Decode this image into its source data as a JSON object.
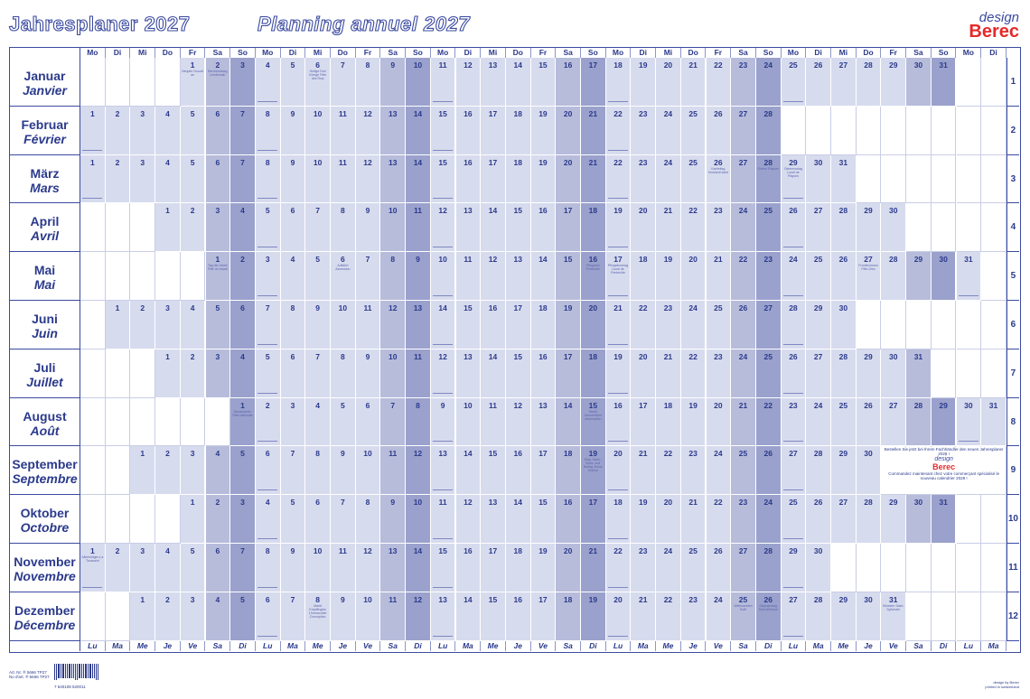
{
  "header": {
    "title_de": "Jahresplaner 2027",
    "title_fr": "Planning annuel 2027"
  },
  "brand": {
    "design": "design",
    "name": "Berec"
  },
  "year": 2027,
  "weekday_header": [
    "Mo",
    "Di",
    "Mi",
    "Do",
    "Fr",
    "Sa",
    "So",
    "Mo",
    "Di",
    "Mi",
    "Do",
    "Fr",
    "Sa",
    "So",
    "Mo",
    "Di",
    "Mi",
    "Do",
    "Fr",
    "Sa",
    "So",
    "Mo",
    "Di",
    "Mi",
    "Do",
    "Fr",
    "Sa",
    "So",
    "Mo",
    "Di",
    "Mi",
    "Do",
    "Fr",
    "Sa",
    "So",
    "Mo",
    "Di"
  ],
  "weekday_footer": [
    "Lu",
    "Ma",
    "Me",
    "Je",
    "Ve",
    "Sa",
    "Di",
    "Lu",
    "Ma",
    "Me",
    "Je",
    "Ve",
    "Sa",
    "Di",
    "Lu",
    "Ma",
    "Me",
    "Je",
    "Ve",
    "Sa",
    "Di",
    "Lu",
    "Ma",
    "Me",
    "Je",
    "Ve",
    "Sa",
    "Di",
    "Lu",
    "Ma",
    "Me",
    "Je",
    "Ve",
    "Sa",
    "Di",
    "Lu",
    "Ma"
  ],
  "months": [
    {
      "de": "Januar",
      "fr": "Janvier",
      "num": "1"
    },
    {
      "de": "Februar",
      "fr": "Février",
      "num": "2"
    },
    {
      "de": "März",
      "fr": "Mars",
      "num": "3"
    },
    {
      "de": "April",
      "fr": "Avril",
      "num": "4"
    },
    {
      "de": "Mai",
      "fr": "Mai",
      "num": "5"
    },
    {
      "de": "Juni",
      "fr": "Juin",
      "num": "6"
    },
    {
      "de": "Juli",
      "fr": "Juillet",
      "num": "7"
    },
    {
      "de": "August",
      "fr": "Août",
      "num": "8"
    },
    {
      "de": "September",
      "fr": "Septembre",
      "num": "9"
    },
    {
      "de": "Oktober",
      "fr": "Octobre",
      "num": "10"
    },
    {
      "de": "November",
      "fr": "Novembre",
      "num": "11"
    },
    {
      "de": "Dezember",
      "fr": "Décembre",
      "num": "12"
    }
  ],
  "holidays": {
    "1-1": "Neujahr Nouvel an",
    "1-2": "Berchtoldstag Lendemain",
    "1-6": "Heilige Drei Könige Fête des Rois",
    "3-26": "Karfreitag Vendredi saint",
    "3-28": "Ostern Pâques",
    "3-29": "Ostermontag Lundi de Pâques",
    "5-1": "Tag der Arbeit Fête du travail",
    "5-6": "Auffahrt Ascension",
    "5-16": "Pfingsten Pentecôte",
    "5-17": "Pfingstmontag Lundi de Pentecôte",
    "5-27": "Fronleichnam Fête-Dieu",
    "8-1": "Bundesfeier Fête nationale",
    "8-15": "Mariä Himmelfahrt Assomption",
    "9-19": "Eidg. Dank-, Buss- und Bettag Jeûne fédéral",
    "11-1": "Allerheiligen La Toussaint",
    "12-8": "Mariä Empfängnis L'Immaculée Conception",
    "12-25": "Weihnachten Noël",
    "12-26": "Stephanstag Saint-Étienne",
    "12-31": "Silvester Saint-Sylvestre"
  },
  "promo": {
    "line_de": "Bestellen Sie jetzt bei Ihrem Fachhändler den neuen Jahresplaner 2028 !",
    "design": "design",
    "brand": "Berec",
    "line_fr": "Commandez maintenant chez votre commerçant spécialisé le nouveau calendrier 2028 !"
  },
  "footer": {
    "art_de": "Art. Nr. ® 5666 TP27",
    "art_fr": "No d'art. ® 5666 TP27",
    "barcode_number": "7 640108 520011",
    "credit_1": "design by Berec",
    "credit_2": "printed in switzerland"
  },
  "colors": {
    "weekday": "#d7dbee",
    "saturday": "#b7bcdb",
    "sunday": "#9aa1cc",
    "ink": "#2b3a8c",
    "brand_red": "#e52a2a"
  }
}
